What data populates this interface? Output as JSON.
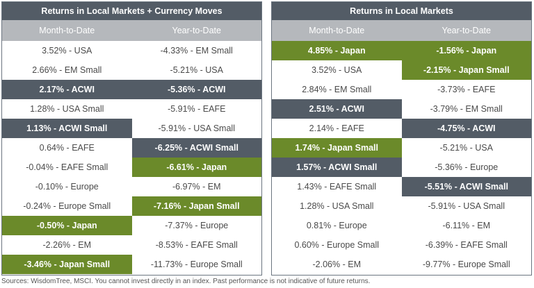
{
  "panels": [
    {
      "title": "Returns in Local Markets + Currency Moves",
      "headers": [
        "Month-to-Date",
        "Year-to-Date"
      ],
      "columns": [
        [
          {
            "text": "3.52% - USA",
            "style": "plain"
          },
          {
            "text": "2.66% - EM Small",
            "style": "plain"
          },
          {
            "text": "2.17% - ACWI",
            "style": "gray"
          },
          {
            "text": "1.28% - USA Small",
            "style": "plain"
          },
          {
            "text": "1.13% - ACWI Small",
            "style": "gray"
          },
          {
            "text": "0.64% - EAFE",
            "style": "plain"
          },
          {
            "text": "-0.04% - EAFE Small",
            "style": "plain"
          },
          {
            "text": "-0.10% - Europe",
            "style": "plain"
          },
          {
            "text": "-0.24% - Europe Small",
            "style": "plain"
          },
          {
            "text": "-0.50% - Japan",
            "style": "green"
          },
          {
            "text": "-2.26% - EM",
            "style": "plain"
          },
          {
            "text": "-3.46% - Japan Small",
            "style": "green"
          }
        ],
        [
          {
            "text": "-4.33% - EM Small",
            "style": "plain"
          },
          {
            "text": "-5.21% - USA",
            "style": "plain"
          },
          {
            "text": "-5.36% - ACWI",
            "style": "gray"
          },
          {
            "text": "-5.91% - EAFE",
            "style": "plain"
          },
          {
            "text": "-5.91% - USA Small",
            "style": "plain"
          },
          {
            "text": "-6.25% - ACWI Small",
            "style": "gray"
          },
          {
            "text": "-6.61% - Japan",
            "style": "green"
          },
          {
            "text": "-6.97% - EM",
            "style": "plain"
          },
          {
            "text": "-7.16% - Japan Small",
            "style": "green"
          },
          {
            "text": "-7.37% - Europe",
            "style": "plain"
          },
          {
            "text": "-8.53% - EAFE Small",
            "style": "plain"
          },
          {
            "text": "-11.73% - Europe Small",
            "style": "plain"
          }
        ]
      ]
    },
    {
      "title": "Returns in Local Markets",
      "headers": [
        "Month-to-Date",
        "Year-to-Date"
      ],
      "columns": [
        [
          {
            "text": "4.85% - Japan",
            "style": "green"
          },
          {
            "text": "3.52% - USA",
            "style": "plain"
          },
          {
            "text": "2.84% - EM Small",
            "style": "plain"
          },
          {
            "text": "2.51% - ACWI",
            "style": "gray"
          },
          {
            "text": "2.14% - EAFE",
            "style": "plain"
          },
          {
            "text": "1.74% - Japan Small",
            "style": "green"
          },
          {
            "text": "1.57% - ACWI Small",
            "style": "gray"
          },
          {
            "text": "1.43% - EAFE Small",
            "style": "plain"
          },
          {
            "text": "1.28% - USA Small",
            "style": "plain"
          },
          {
            "text": "0.81% - Europe",
            "style": "plain"
          },
          {
            "text": "0.60% - Europe Small",
            "style": "plain"
          },
          {
            "text": "-2.06% - EM",
            "style": "plain"
          }
        ],
        [
          {
            "text": "-1.56% - Japan",
            "style": "green"
          },
          {
            "text": "-2.15% - Japan Small",
            "style": "green"
          },
          {
            "text": "-3.73% - EAFE",
            "style": "plain"
          },
          {
            "text": "-3.79% - EM Small",
            "style": "plain"
          },
          {
            "text": "-4.75% - ACWI",
            "style": "gray"
          },
          {
            "text": "-5.21% - USA",
            "style": "plain"
          },
          {
            "text": "-5.36% - Europe",
            "style": "plain"
          },
          {
            "text": "-5.51% - ACWI Small",
            "style": "gray"
          },
          {
            "text": "-5.91% - USA Small",
            "style": "plain"
          },
          {
            "text": "-6.11% - EM",
            "style": "plain"
          },
          {
            "text": "-6.39% - EAFE Small",
            "style": "plain"
          },
          {
            "text": "-9.77% - Europe Small",
            "style": "plain"
          }
        ]
      ]
    }
  ],
  "colors": {
    "green": "#6b8a2a",
    "gray": "#535c66",
    "header": "#b5b8bc"
  },
  "source": "Sources: WisdomTree, MSCI. You cannot invest directly in an index. Past performance is not indicative of future returns."
}
